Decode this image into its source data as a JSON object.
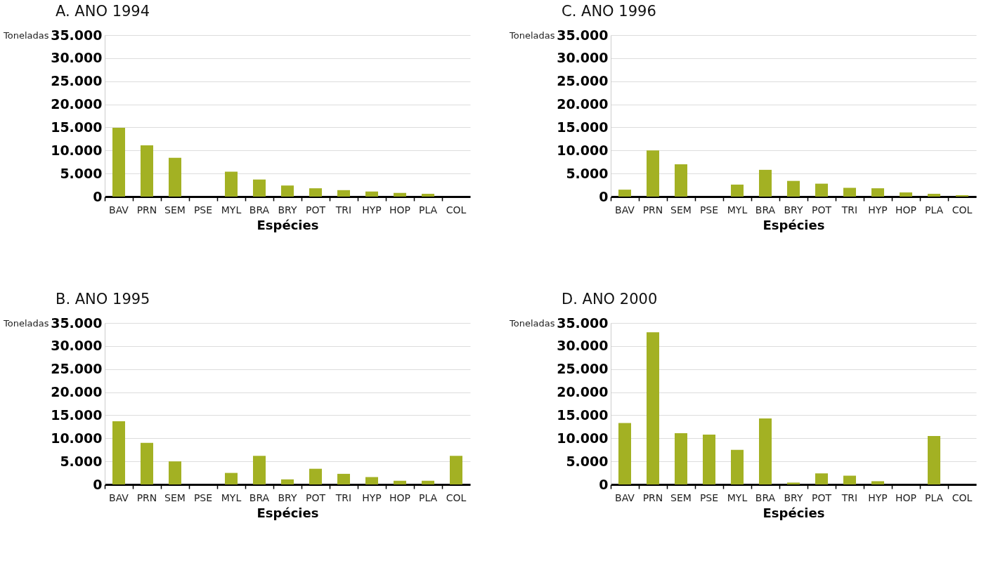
{
  "chart_data": [
    {
      "type": "bar",
      "title": "A. ANO 1994",
      "xlabel": "Espécies",
      "ylabel": "Toneladas",
      "categories": [
        "BAV",
        "PRN",
        "SEM",
        "PSE",
        "MYL",
        "BRA",
        "BRY",
        "POT",
        "TRI",
        "HYP",
        "HOP",
        "PLA",
        "COL"
      ],
      "values": [
        14900,
        11100,
        8400,
        0,
        5400,
        3700,
        2400,
        1800,
        1400,
        1100,
        800,
        600,
        0
      ],
      "color": "#a3b123",
      "ylim": [
        0,
        35000
      ],
      "yticks": [
        {
          "value": 0,
          "label": "0"
        },
        {
          "value": 5000,
          "label": "5.000"
        },
        {
          "value": 10000,
          "label": "10.000"
        },
        {
          "value": 15000,
          "label": "15.000"
        },
        {
          "value": 20000,
          "label": "20.000"
        },
        {
          "value": 25000,
          "label": "25.000"
        },
        {
          "value": 30000,
          "label": "30.000"
        },
        {
          "value": 35000,
          "label": "35.000"
        }
      ],
      "grid": "y"
    },
    {
      "type": "bar",
      "title": "C. ANO 1996",
      "xlabel": "Espécies",
      "ylabel": "Toneladas",
      "categories": [
        "BAV",
        "PRN",
        "SEM",
        "PSE",
        "MYL",
        "BRA",
        "BRY",
        "POT",
        "TRI",
        "HYP",
        "HOP",
        "PLA",
        "COL"
      ],
      "values": [
        1500,
        10000,
        7000,
        0,
        2600,
        5800,
        3400,
        2800,
        1900,
        1800,
        900,
        600,
        300
      ],
      "color": "#a3b123",
      "ylim": [
        0,
        35000
      ],
      "yticks": [
        {
          "value": 0,
          "label": "0"
        },
        {
          "value": 5000,
          "label": "5.000"
        },
        {
          "value": 10000,
          "label": "10.000"
        },
        {
          "value": 15000,
          "label": "15.000"
        },
        {
          "value": 20000,
          "label": "20.000"
        },
        {
          "value": 25000,
          "label": "25.000"
        },
        {
          "value": 30000,
          "label": "30.000"
        },
        {
          "value": 35000,
          "label": "35.000"
        }
      ],
      "grid": "y"
    },
    {
      "type": "bar",
      "title": "B. ANO 1995",
      "xlabel": "Espécies",
      "ylabel": "Toneladas",
      "categories": [
        "BAV",
        "PRN",
        "SEM",
        "PSE",
        "MYL",
        "BRA",
        "BRY",
        "POT",
        "TRI",
        "HYP",
        "HOP",
        "PLA",
        "COL"
      ],
      "values": [
        13700,
        9000,
        5000,
        0,
        2500,
        6200,
        1100,
        3400,
        2300,
        1600,
        800,
        800,
        6200
      ],
      "color": "#a3b123",
      "ylim": [
        0,
        35000
      ],
      "yticks": [
        {
          "value": 0,
          "label": "0"
        },
        {
          "value": 5000,
          "label": "5.000"
        },
        {
          "value": 10000,
          "label": "10.000"
        },
        {
          "value": 15000,
          "label": "15.000"
        },
        {
          "value": 20000,
          "label": "20.000"
        },
        {
          "value": 25000,
          "label": "25.000"
        },
        {
          "value": 30000,
          "label": "30.000"
        },
        {
          "value": 35000,
          "label": "35.000"
        }
      ],
      "grid": "y"
    },
    {
      "type": "bar",
      "title": "D. ANO 2000",
      "xlabel": "Espécies",
      "ylabel": "Toneladas",
      "categories": [
        "BAV",
        "PRN",
        "SEM",
        "PSE",
        "MYL",
        "BRA",
        "BRY",
        "POT",
        "TRI",
        "HYP",
        "HOP",
        "PLA",
        "COL"
      ],
      "values": [
        13300,
        33000,
        11100,
        10800,
        7500,
        14300,
        400,
        2400,
        1900,
        700,
        0,
        10500,
        0
      ],
      "color": "#a3b123",
      "ylim": [
        0,
        35000
      ],
      "yticks": [
        {
          "value": 0,
          "label": "0"
        },
        {
          "value": 5000,
          "label": "5.000"
        },
        {
          "value": 10000,
          "label": "10.000"
        },
        {
          "value": 15000,
          "label": "15.000"
        },
        {
          "value": 20000,
          "label": "20.000"
        },
        {
          "value": 25000,
          "label": "25.000"
        },
        {
          "value": 30000,
          "label": "30.000"
        },
        {
          "value": 35000,
          "label": "35.000"
        }
      ],
      "grid": "y"
    }
  ]
}
